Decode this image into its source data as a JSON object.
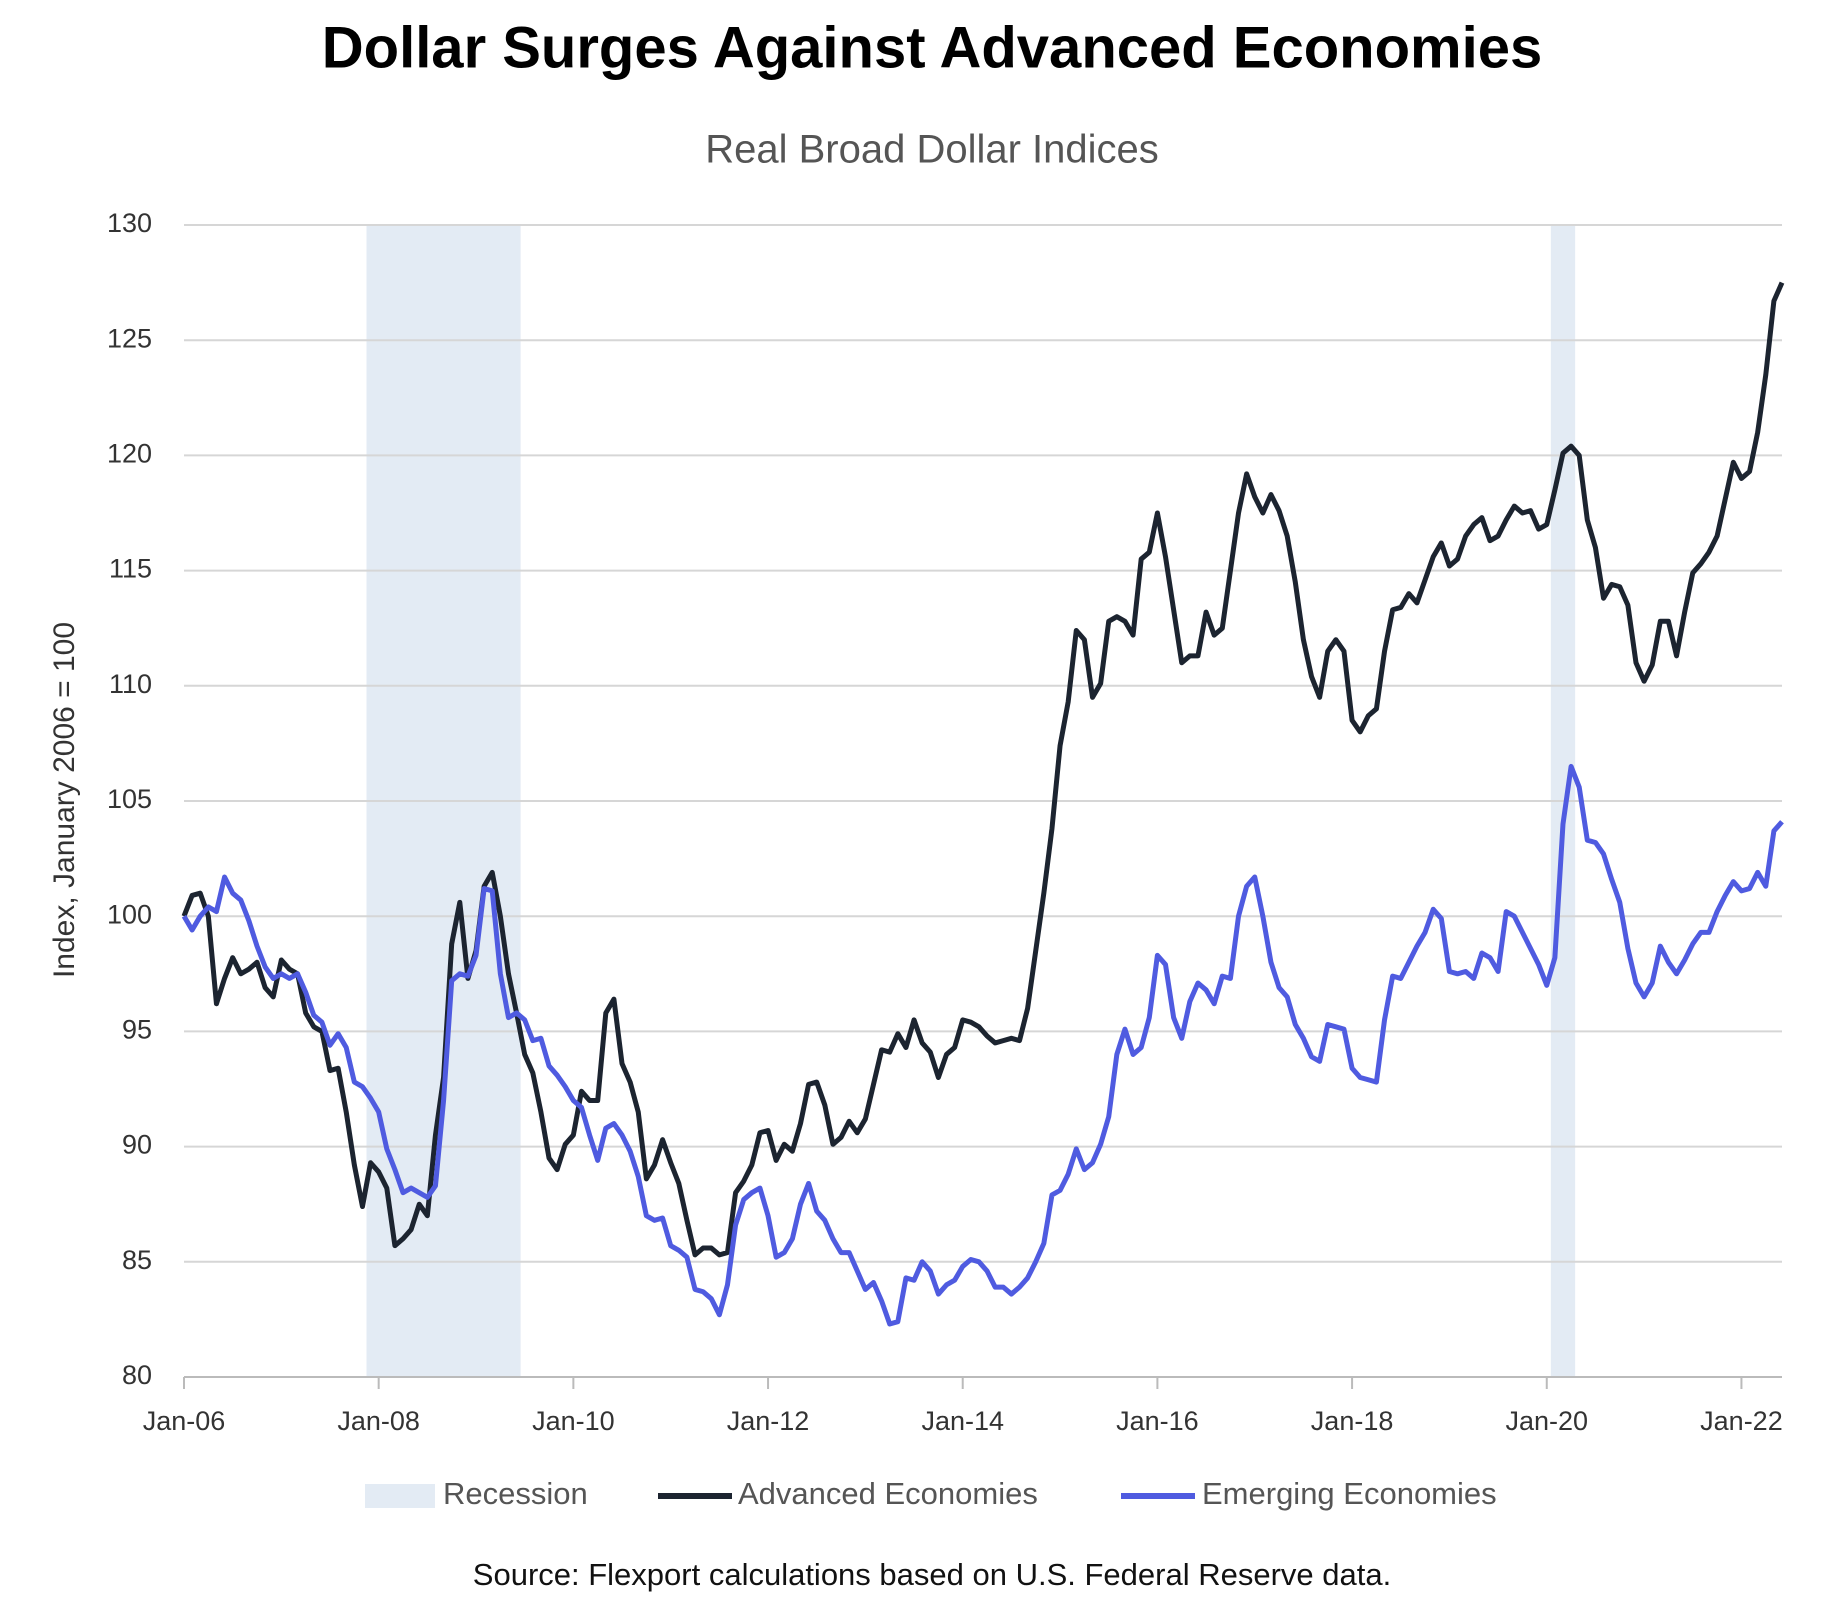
{
  "chart_data": {
    "type": "line",
    "title": "Dollar Surges Against Advanced Economies",
    "subtitle": "Real Broad Dollar Indices",
    "y_axis_label": "Index, January 2006 = 100",
    "source": "Source: Flexport calculations based on U.S. Federal Reserve data.",
    "categories": [
      "Jan-06",
      null,
      null,
      null,
      null,
      null,
      null,
      null,
      null,
      null,
      null,
      null,
      null,
      null,
      null,
      null,
      null,
      null,
      null,
      null,
      null,
      null,
      null,
      null,
      "Jan-08",
      null,
      null,
      null,
      null,
      null,
      null,
      null,
      null,
      null,
      null,
      null,
      null,
      null,
      null,
      null,
      null,
      null,
      null,
      null,
      null,
      null,
      null,
      null,
      "Jan-10",
      null,
      null,
      null,
      null,
      null,
      null,
      null,
      null,
      null,
      null,
      null,
      null,
      null,
      null,
      null,
      null,
      null,
      null,
      null,
      null,
      null,
      null,
      null,
      "Jan-12",
      null,
      null,
      null,
      null,
      null,
      null,
      null,
      null,
      null,
      null,
      null,
      null,
      null,
      null,
      null,
      null,
      null,
      null,
      null,
      null,
      null,
      null,
      null,
      "Jan-14",
      null,
      null,
      null,
      null,
      null,
      null,
      null,
      null,
      null,
      null,
      null,
      null,
      null,
      null,
      null,
      null,
      null,
      null,
      null,
      null,
      null,
      null,
      null,
      "Jan-16",
      null,
      null,
      null,
      null,
      null,
      null,
      null,
      null,
      null,
      null,
      null,
      null,
      null,
      null,
      null,
      null,
      null,
      null,
      null,
      null,
      null,
      null,
      null,
      "Jan-18",
      null,
      null,
      null,
      null,
      null,
      null,
      null,
      null,
      null,
      null,
      null,
      null,
      null,
      null,
      null,
      null,
      null,
      null,
      null,
      null,
      null,
      null,
      null,
      "Jan-20",
      null,
      null,
      null,
      null,
      null,
      null,
      null,
      null,
      null,
      null,
      null,
      null,
      null,
      null,
      null,
      null,
      null,
      null,
      null,
      null,
      null,
      null,
      null,
      "Jan-22",
      null,
      null,
      null,
      null,
      null
    ],
    "series": [
      {
        "name": "Advanced Economies",
        "color": "#1c2430",
        "values": [
          100,
          100.9,
          101,
          100,
          96.2,
          97.3,
          98.2,
          97.5,
          97.7,
          98,
          96.9,
          96.5,
          98.1,
          97.7,
          97.5,
          95.8,
          95.2,
          95,
          93.3,
          93.4,
          91.5,
          89.2,
          87.4,
          89.3,
          88.9,
          88.2,
          85.7,
          86,
          86.4,
          87.5,
          87,
          90.5,
          93,
          98.8,
          100.6,
          97.3,
          98.5,
          101.3,
          101.9,
          100,
          97.5,
          95.8,
          94,
          93.2,
          91.5,
          89.5,
          89,
          90.1,
          90.5,
          92.4,
          92,
          92,
          95.8,
          96.4,
          93.6,
          92.8,
          91.5,
          88.6,
          89.2,
          90.3,
          89.3,
          88.4,
          86.8,
          85.3,
          85.6,
          85.6,
          85.3,
          85.4,
          88,
          88.5,
          89.2,
          90.6,
          90.7,
          89.4,
          90.1,
          89.8,
          91,
          92.7,
          92.8,
          91.8,
          90.1,
          90.4,
          91.1,
          90.6,
          91.2,
          92.7,
          94.2,
          94.1,
          94.9,
          94.3,
          95.5,
          94.5,
          94.1,
          93,
          94,
          94.3,
          95.5,
          95.4,
          95.2,
          94.8,
          94.5,
          94.6,
          94.7,
          94.6,
          96,
          98.5,
          101,
          103.8,
          107.4,
          109.3,
          112.4,
          112,
          109.5,
          110.1,
          112.8,
          113,
          112.8,
          112.2,
          115.5,
          115.8,
          117.5,
          115.6,
          113.3,
          111,
          111.3,
          111.3,
          113.2,
          112.2,
          112.5,
          115,
          117.5,
          119.2,
          118.2,
          117.5,
          118.3,
          117.6,
          116.5,
          114.5,
          112,
          110.4,
          109.5,
          111.5,
          112,
          111.5,
          108.5,
          108,
          108.7,
          109,
          111.5,
          113.3,
          113.4,
          114,
          113.6,
          114.6,
          115.6,
          116.2,
          115.2,
          115.5,
          116.5,
          117,
          117.3,
          116.3,
          116.5,
          117.2,
          117.8,
          117.5,
          117.6,
          116.8,
          117,
          118.5,
          120.1,
          120.4,
          120,
          117.2,
          116,
          113.8,
          114.4,
          114.3,
          113.5,
          111,
          110.2,
          110.9,
          112.8,
          112.8,
          111.3,
          113.2,
          114.9,
          115.3,
          115.8,
          116.5,
          118.1,
          119.7,
          119,
          119.3,
          121,
          123.5,
          126.7,
          127.5
        ]
      },
      {
        "name": "Emerging Economies",
        "color": "#4f5be0",
        "values": [
          100,
          99.4,
          100,
          100.4,
          100.2,
          101.7,
          101,
          100.7,
          99.8,
          98.7,
          97.8,
          97.3,
          97.5,
          97.3,
          97.5,
          96.7,
          95.7,
          95.4,
          94.4,
          94.9,
          94.3,
          92.8,
          92.6,
          92.1,
          91.5,
          89.9,
          89,
          88,
          88.2,
          88,
          87.8,
          88.3,
          92,
          97.2,
          97.5,
          97.4,
          98.3,
          101.2,
          101.1,
          97.5,
          95.6,
          95.8,
          95.5,
          94.6,
          94.7,
          93.5,
          93.1,
          92.6,
          92,
          91.7,
          90.5,
          89.4,
          90.8,
          91,
          90.5,
          89.8,
          88.7,
          87,
          86.8,
          86.9,
          85.7,
          85.5,
          85.2,
          83.8,
          83.7,
          83.4,
          82.7,
          84,
          86.6,
          87.7,
          88,
          88.2,
          87,
          85.2,
          85.4,
          86,
          87.5,
          88.4,
          87.2,
          86.8,
          86,
          85.4,
          85.4,
          84.6,
          83.8,
          84.1,
          83.3,
          82.3,
          82.4,
          84.3,
          84.2,
          85,
          84.6,
          83.6,
          84,
          84.2,
          84.8,
          85.1,
          85,
          84.6,
          83.9,
          83.9,
          83.6,
          83.9,
          84.3,
          85,
          85.8,
          87.9,
          88.1,
          88.8,
          89.9,
          89,
          89.3,
          90.1,
          91.3,
          94,
          95.1,
          94,
          94.3,
          95.6,
          98.3,
          97.9,
          95.6,
          94.7,
          96.3,
          97.1,
          96.8,
          96.2,
          97.4,
          97.3,
          100,
          101.3,
          101.7,
          100,
          98,
          96.9,
          96.5,
          95.3,
          94.7,
          93.9,
          93.7,
          95.3,
          95.2,
          95.1,
          93.4,
          93,
          92.9,
          92.8,
          95.5,
          97.4,
          97.3,
          98,
          98.7,
          99.3,
          100.3,
          99.9,
          97.6,
          97.5,
          97.6,
          97.3,
          98.4,
          98.2,
          97.6,
          100.2,
          100,
          99.3,
          98.6,
          97.9,
          97,
          98.2,
          104,
          106.5,
          105.6,
          103.3,
          103.2,
          102.7,
          101.6,
          100.6,
          98.6,
          97.1,
          96.5,
          97.1,
          98.7,
          98,
          97.5,
          98.1,
          98.8,
          99.3,
          99.3,
          100.2,
          100.9,
          101.5,
          101.1,
          101.2,
          101.9,
          101.3,
          103.7,
          104.1
        ]
      }
    ],
    "recession": {
      "name": "Recession",
      "color": "#e3ebf4",
      "periods": [
        [
          "Dec-07",
          "Jun-09"
        ],
        [
          "Feb-20",
          "Apr-20"
        ]
      ]
    },
    "ylim": [
      80,
      130
    ],
    "yticks": [
      80,
      85,
      90,
      95,
      100,
      105,
      110,
      115,
      120,
      125,
      130
    ],
    "grid": true,
    "legend": "bottom"
  }
}
